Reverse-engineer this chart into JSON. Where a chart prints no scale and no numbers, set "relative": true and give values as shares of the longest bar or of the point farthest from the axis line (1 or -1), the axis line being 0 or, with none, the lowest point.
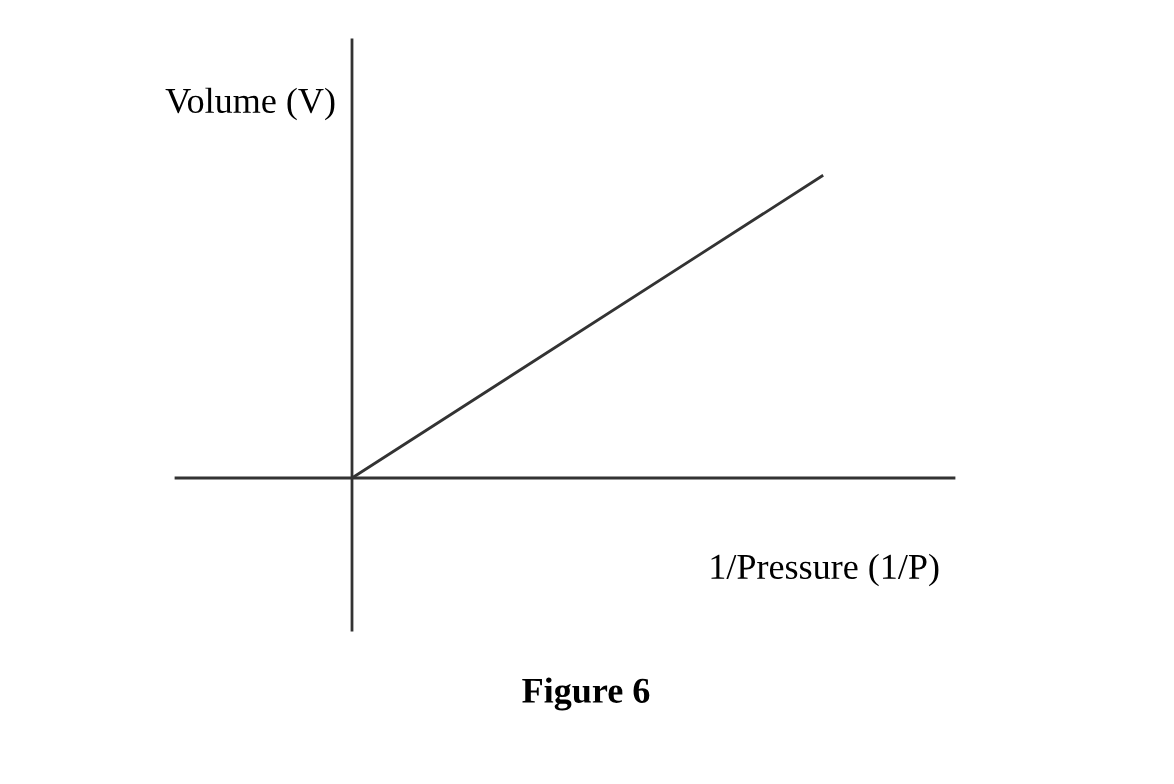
{
  "chart_data": {
    "type": "line",
    "relative": true,
    "ylabel": "Volume (V)",
    "xlabel": "1/Pressure (1/P)",
    "annotations": [
      "Figure 6"
    ],
    "categories": [
      null,
      null
    ],
    "series": [
      {
        "color": "#333333",
        "values": [
          0,
          1
        ]
      }
    ],
    "legend": false,
    "marker": "none",
    "line_style": "solid"
  }
}
